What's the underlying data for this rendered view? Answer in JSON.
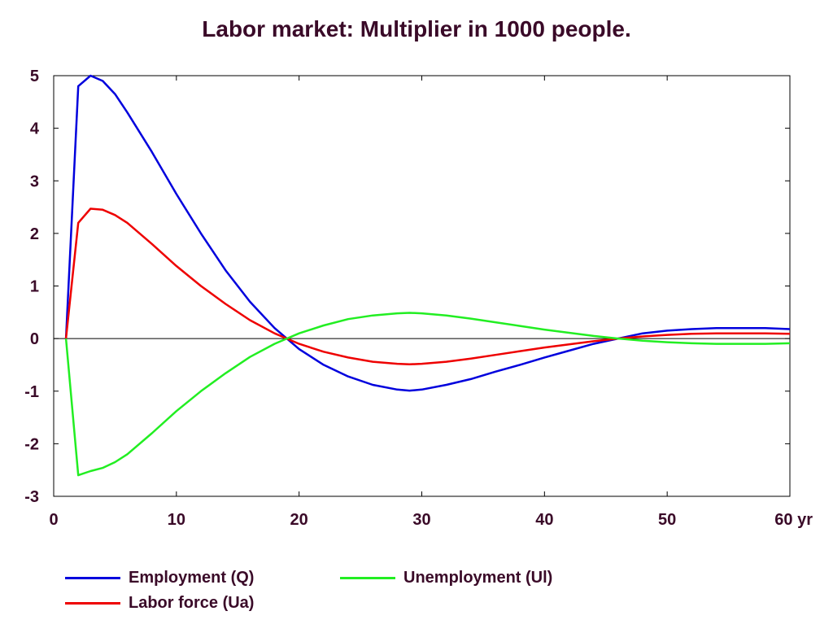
{
  "chart_data": {
    "type": "line",
    "title": "Labor market: Multiplier in 1000 people.",
    "xlabel": "",
    "ylabel": "",
    "xlim": [
      0,
      60
    ],
    "ylim": [
      -3,
      5
    ],
    "x_ticks": [
      {
        "value": 0,
        "label": "0"
      },
      {
        "value": 10,
        "label": "10"
      },
      {
        "value": 20,
        "label": "20"
      },
      {
        "value": 30,
        "label": "30"
      },
      {
        "value": 40,
        "label": "40"
      },
      {
        "value": 50,
        "label": "50"
      },
      {
        "value": 60,
        "label": "60 yr"
      }
    ],
    "y_ticks": [
      {
        "value": 5,
        "label": "5"
      },
      {
        "value": 4,
        "label": "4"
      },
      {
        "value": 3,
        "label": "3"
      },
      {
        "value": 2,
        "label": "2"
      },
      {
        "value": 1,
        "label": "1"
      },
      {
        "value": 0,
        "label": "0"
      },
      {
        "value": -1,
        "label": "-1"
      },
      {
        "value": -2,
        "label": "-2"
      },
      {
        "value": -3,
        "label": "-3"
      }
    ],
    "legend_position": "bottom",
    "x": [
      1,
      2,
      3,
      4,
      5,
      6,
      8,
      10,
      12,
      14,
      16,
      18,
      19,
      20,
      22,
      24,
      26,
      28,
      29,
      30,
      32,
      34,
      36,
      38,
      40,
      42,
      44,
      46,
      48,
      50,
      52,
      54,
      56,
      58,
      60
    ],
    "series": [
      {
        "name": "Employment (Q)",
        "color": "#0000dd",
        "values": [
          0,
          4.8,
          5.0,
          4.9,
          4.65,
          4.3,
          3.55,
          2.75,
          2.0,
          1.3,
          0.7,
          0.2,
          0,
          -0.2,
          -0.5,
          -0.72,
          -0.88,
          -0.97,
          -0.99,
          -0.97,
          -0.88,
          -0.77,
          -0.63,
          -0.5,
          -0.36,
          -0.23,
          -0.1,
          0,
          0.1,
          0.15,
          0.18,
          0.2,
          0.2,
          0.2,
          0.18
        ]
      },
      {
        "name": "Labor force (Ua)",
        "color": "#ee0000",
        "values": [
          0,
          2.2,
          2.47,
          2.45,
          2.35,
          2.2,
          1.8,
          1.38,
          1.0,
          0.66,
          0.35,
          0.1,
          0,
          -0.1,
          -0.25,
          -0.36,
          -0.44,
          -0.48,
          -0.49,
          -0.48,
          -0.44,
          -0.38,
          -0.31,
          -0.24,
          -0.17,
          -0.11,
          -0.05,
          0,
          0.04,
          0.07,
          0.09,
          0.1,
          0.1,
          0.1,
          0.09
        ]
      },
      {
        "name": "Unemployment (Ul)",
        "color": "#22ee22",
        "values": [
          0,
          -2.6,
          -2.52,
          -2.46,
          -2.35,
          -2.2,
          -1.8,
          -1.38,
          -1.0,
          -0.66,
          -0.35,
          -0.1,
          0,
          0.1,
          0.25,
          0.37,
          0.44,
          0.48,
          0.49,
          0.48,
          0.44,
          0.38,
          0.31,
          0.24,
          0.17,
          0.11,
          0.05,
          0,
          -0.04,
          -0.07,
          -0.09,
          -0.1,
          -0.1,
          -0.1,
          -0.09
        ]
      }
    ]
  }
}
